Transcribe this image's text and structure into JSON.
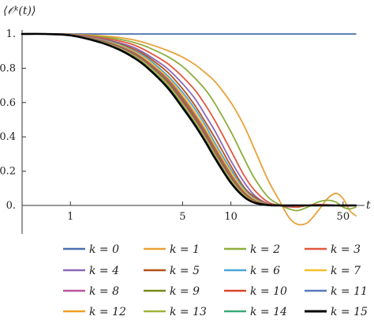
{
  "chart_data": {
    "type": "line",
    "ylabel": "⟨𝒪ᵏ(t)⟩",
    "xlabel": "t",
    "x_scale": "log",
    "xlim": [
      0.5,
      65
    ],
    "ylim": [
      -0.18,
      1.08
    ],
    "x_ticks": [
      {
        "value": 1,
        "label": "1"
      },
      {
        "value": 5,
        "label": "5"
      },
      {
        "value": 10,
        "label": "10"
      },
      {
        "value": 50,
        "label": "50"
      }
    ],
    "y_ticks": [
      {
        "value": 1.0,
        "label": "1."
      },
      {
        "value": 0.8,
        "label": "0.8"
      },
      {
        "value": 0.6,
        "label": "0.6"
      },
      {
        "value": 0.4,
        "label": "0.4"
      },
      {
        "value": 0.2,
        "label": "0.2"
      },
      {
        "value": 0.0,
        "label": "0."
      }
    ],
    "x": [
      0.5,
      0.7,
      1,
      1.5,
      2,
      2.5,
      3,
      4,
      5,
      6,
      7,
      8,
      10,
      12,
      14,
      17,
      20,
      23,
      26,
      30,
      35,
      40,
      45,
      50,
      55,
      60
    ],
    "series": [
      {
        "name": "k = 0",
        "color": "#4a6fad",
        "values": [
          1,
          1,
          1,
          1,
          1,
          1,
          1,
          1,
          1,
          1,
          1,
          1,
          1,
          1,
          1,
          1,
          1,
          1,
          1,
          1,
          1,
          1,
          1,
          1,
          1,
          1
        ]
      },
      {
        "name": "k = 1",
        "color": "#e8a23a",
        "values": [
          1,
          1,
          0.998,
          0.99,
          0.98,
          0.965,
          0.945,
          0.905,
          0.865,
          0.82,
          0.77,
          0.72,
          0.6,
          0.47,
          0.33,
          0.15,
          0.03,
          -0.07,
          -0.11,
          -0.1,
          -0.03,
          0.04,
          0.07,
          0.04,
          -0.03,
          -0.06
        ]
      },
      {
        "name": "k = 2",
        "color": "#8cae3c",
        "values": [
          1,
          1,
          0.998,
          0.985,
          0.97,
          0.95,
          0.925,
          0.87,
          0.81,
          0.74,
          0.67,
          0.59,
          0.43,
          0.28,
          0.16,
          0.05,
          0.005,
          -0.02,
          -0.03,
          -0.01,
          0.02,
          0.03,
          0.02,
          -0.01,
          -0.02,
          -0.01
        ]
      },
      {
        "name": "k = 3",
        "color": "#e2583e",
        "values": [
          1,
          1,
          0.997,
          0.98,
          0.96,
          0.935,
          0.9,
          0.83,
          0.75,
          0.67,
          0.58,
          0.49,
          0.32,
          0.18,
          0.09,
          0.02,
          0,
          -0.008,
          -0.01,
          0,
          0.005,
          0.004,
          0,
          -0.003,
          -0.002,
          0
        ]
      },
      {
        "name": "k = 4",
        "color": "#8a68b8",
        "values": [
          1,
          1,
          0.996,
          0.975,
          0.95,
          0.92,
          0.88,
          0.8,
          0.71,
          0.62,
          0.52,
          0.43,
          0.26,
          0.14,
          0.06,
          0.01,
          0,
          -0.005,
          0,
          0,
          0,
          0,
          0,
          0,
          0,
          0
        ]
      },
      {
        "name": "k = 5",
        "color": "#b5521a",
        "values": [
          1,
          1,
          0.996,
          0.972,
          0.945,
          0.91,
          0.87,
          0.78,
          0.68,
          0.58,
          0.48,
          0.39,
          0.23,
          0.11,
          0.05,
          0.008,
          0,
          0,
          0,
          0,
          0,
          0,
          0,
          0,
          0,
          0
        ]
      },
      {
        "name": "k = 6",
        "color": "#4aa6d6",
        "values": [
          1,
          1,
          0.995,
          0.97,
          0.94,
          0.9,
          0.86,
          0.76,
          0.66,
          0.56,
          0.46,
          0.36,
          0.21,
          0.1,
          0.04,
          0.006,
          0,
          0,
          0,
          0,
          0,
          0,
          0,
          0,
          0,
          0
        ]
      },
      {
        "name": "k = 7",
        "color": "#f4c02a",
        "values": [
          1,
          1,
          0.995,
          0.968,
          0.935,
          0.895,
          0.85,
          0.75,
          0.645,
          0.54,
          0.44,
          0.345,
          0.195,
          0.09,
          0.035,
          0.005,
          0,
          0,
          0,
          0,
          0,
          0,
          0,
          0,
          0,
          0
        ]
      },
      {
        "name": "k = 8",
        "color": "#b8569c",
        "values": [
          1,
          1,
          0.995,
          0.966,
          0.93,
          0.89,
          0.84,
          0.74,
          0.63,
          0.525,
          0.425,
          0.33,
          0.18,
          0.08,
          0.03,
          0.004,
          0,
          0,
          0,
          0,
          0,
          0,
          0,
          0,
          0,
          0
        ]
      },
      {
        "name": "k = 9",
        "color": "#7a8a1c",
        "values": [
          1,
          1,
          0.994,
          0.964,
          0.927,
          0.885,
          0.835,
          0.73,
          0.62,
          0.515,
          0.415,
          0.32,
          0.17,
          0.075,
          0.028,
          0.004,
          0,
          0,
          0,
          0,
          0,
          0,
          0,
          0,
          0,
          0
        ]
      },
      {
        "name": "k = 10",
        "color": "#d9452e",
        "values": [
          1,
          1,
          0.994,
          0.962,
          0.924,
          0.88,
          0.83,
          0.72,
          0.61,
          0.505,
          0.405,
          0.31,
          0.162,
          0.07,
          0.025,
          0.003,
          0,
          0,
          0,
          0,
          0,
          0,
          0,
          0,
          0,
          0
        ]
      },
      {
        "name": "k = 11",
        "color": "#5b78bd",
        "values": [
          1,
          1,
          0.994,
          0.96,
          0.921,
          0.876,
          0.825,
          0.715,
          0.6,
          0.495,
          0.395,
          0.3,
          0.155,
          0.066,
          0.023,
          0.003,
          0,
          0,
          0,
          0,
          0,
          0,
          0,
          0,
          0,
          0
        ]
      },
      {
        "name": "k = 12",
        "color": "#f0a024",
        "values": [
          1,
          1,
          0.993,
          0.958,
          0.918,
          0.872,
          0.82,
          0.71,
          0.592,
          0.487,
          0.386,
          0.292,
          0.149,
          0.062,
          0.021,
          0.002,
          0,
          0,
          0,
          0,
          0,
          0,
          0,
          0,
          0,
          0
        ]
      },
      {
        "name": "k = 13",
        "color": "#a0b43a",
        "values": [
          1,
          1,
          0.993,
          0.957,
          0.915,
          0.868,
          0.815,
          0.703,
          0.585,
          0.48,
          0.378,
          0.285,
          0.143,
          0.058,
          0.019,
          0.002,
          0,
          0,
          0,
          0,
          0,
          0,
          0,
          0,
          0,
          0
        ]
      },
      {
        "name": "k = 14",
        "color": "#3aa878",
        "values": [
          1,
          1,
          0.993,
          0.956,
          0.913,
          0.865,
          0.811,
          0.698,
          0.578,
          0.473,
          0.372,
          0.279,
          0.138,
          0.055,
          0.018,
          0.002,
          0,
          0,
          0,
          0,
          0,
          0,
          0,
          0,
          0,
          0
        ]
      },
      {
        "name": "k = 15",
        "color": "#000000",
        "values": [
          1,
          1,
          0.992,
          0.954,
          0.91,
          0.86,
          0.805,
          0.69,
          0.57,
          0.465,
          0.365,
          0.272,
          0.132,
          0.052,
          0.016,
          0.002,
          0,
          0,
          0,
          0,
          0,
          0,
          0,
          0,
          0,
          0
        ]
      }
    ]
  }
}
